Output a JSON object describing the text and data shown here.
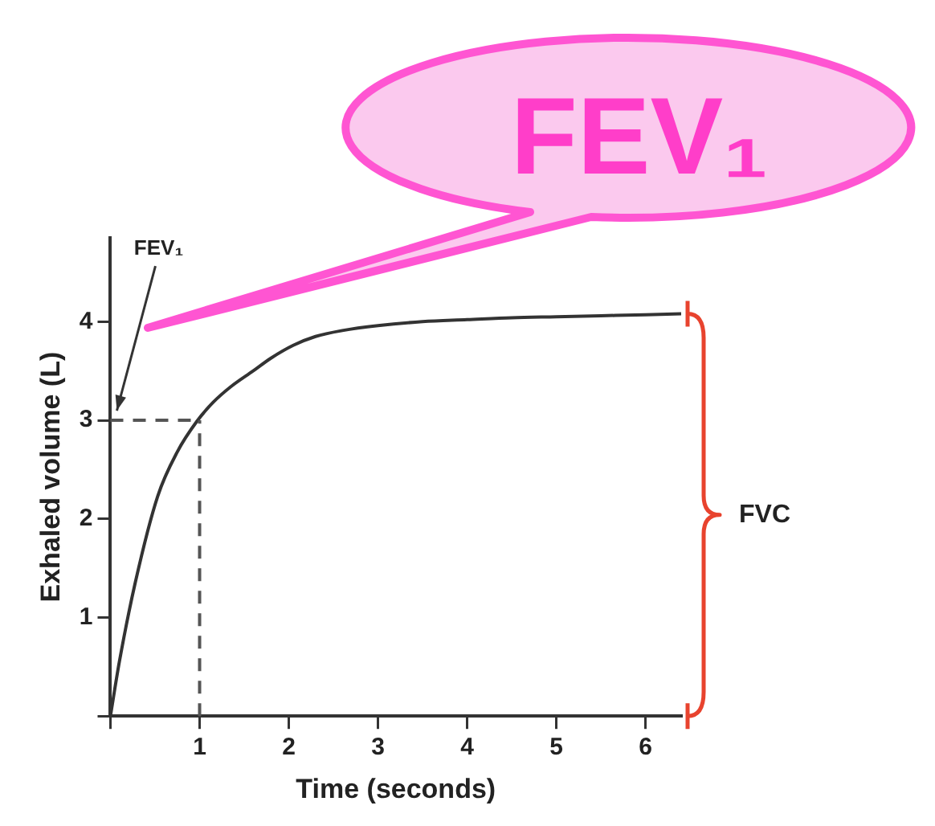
{
  "chart_data": {
    "type": "line",
    "xlabel": "Time (seconds)",
    "ylabel": "Exhaled volume (L)",
    "xlim": [
      0,
      6.4
    ],
    "ylim": [
      0,
      4.85
    ],
    "xticks": [
      {
        "value": 0,
        "label": null
      },
      1,
      2,
      3,
      4,
      5,
      6
    ],
    "yticks": [
      {
        "value": 0,
        "label": null
      },
      1,
      2,
      3,
      4
    ],
    "grid": false,
    "legend": false,
    "marker": "none",
    "line_style": "solid",
    "series": [
      {
        "color": "#333333",
        "x": [
          0,
          0.1,
          0.28,
          0.53,
          0.75,
          0.97,
          1.15,
          1.35,
          1.6,
          1.8,
          2.05,
          2.3,
          2.6,
          3,
          3.5,
          4,
          4.5,
          5,
          5.5,
          6,
          6.4
        ],
        "values": [
          0,
          0.55,
          1.36,
          2.23,
          2.68,
          2.99,
          3.18,
          3.34,
          3.5,
          3.63,
          3.76,
          3.85,
          3.91,
          3.96,
          4,
          4.02,
          4.04,
          4.05,
          4.06,
          4.07,
          4.08
        ]
      }
    ],
    "ref_lines": [
      {
        "axis": "y",
        "value": 3,
        "color": "#555555",
        "line_style": "dashed"
      },
      {
        "axis": "x",
        "value": 1,
        "color": "#555555",
        "line_style": "dashed"
      }
    ],
    "annotations": [
      "FEV₁",
      "FEV₁",
      "FVC"
    ]
  }
}
